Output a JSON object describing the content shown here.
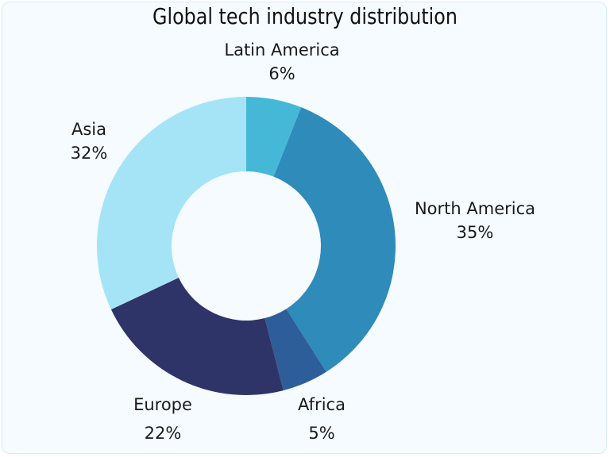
{
  "chart_data": {
    "type": "pie",
    "donut": true,
    "title": "Global tech industry distribution",
    "slices": [
      {
        "label": "Latin America",
        "value": 6,
        "value_label": "6%",
        "color": "#45b8d8"
      },
      {
        "label": "North America",
        "value": 35,
        "value_label": "35%",
        "color": "#2e8bba"
      },
      {
        "label": "Africa",
        "value": 5,
        "value_label": "5%",
        "color": "#2d5e99"
      },
      {
        "label": "Europe",
        "value": 22,
        "value_label": "22%",
        "color": "#2f3468"
      },
      {
        "label": "Asia",
        "value": 32,
        "value_label": "32%",
        "color": "#a4e4f6"
      }
    ],
    "start": "top",
    "direction": "clockwise",
    "legend": "none"
  }
}
